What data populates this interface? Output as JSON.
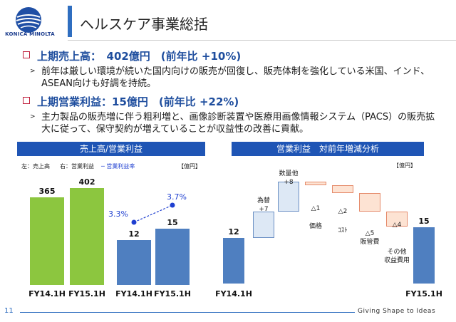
{
  "header": {
    "brand": "KONICA MINOLTA",
    "title": "ヘルスケア事業総括"
  },
  "sections": [
    {
      "heading": "上期売上高：　402億円　(前年比 +10%)",
      "body": "前年は厳しい環境が続いた国内向けの販売が回復し、販売体制を強化している米国、インド、ASEAN向けも好調を持続。"
    },
    {
      "heading": "上期営業利益：15億円　(前年比 +22%)",
      "body": "主力製品の販売増に伴う粗利増と、画像診断装置や医療用画像情報システム（PACS）の販売拡大に従って、保守契約が増えていることが収益性の改善に貢献。"
    }
  ],
  "left_chart": {
    "header": "売上高/営業利益",
    "legend_left": "左：売上高",
    "legend_right": "右：営業利益",
    "legend_line": "─ 営業利益率",
    "unit": "【億円】"
  },
  "right_chart": {
    "header": "営業利益　対前年増減分析",
    "unit": "【億円】"
  },
  "footer": {
    "page_number": "11",
    "tagline": "Giving Shape to Ideas"
  },
  "colors": {
    "accent_blue": "#1f55b5",
    "green_bar": "#8cc63f",
    "blue_bar": "#4f7fc0",
    "rate_line": "#1f3fd0"
  },
  "chart_data": [
    {
      "type": "bar",
      "categories": [
        "FY14.1H",
        "FY15.1H"
      ],
      "series": [
        {
          "values": [
            365,
            402
          ]
        }
      ],
      "ylim": [
        0,
        420
      ]
    },
    {
      "type": "bar",
      "categories": [
        "FY14.1H",
        "FY15.1H"
      ],
      "series": [
        {
          "values": [
            12,
            15
          ]
        },
        {
          "name": "営業利益率",
          "values": [
            3.3,
            3.7
          ],
          "labels": [
            "3.3%",
            "3.7%"
          ]
        }
      ],
      "ylim": [
        0,
        26
      ]
    },
    {
      "type": "bar",
      "subtype": "waterfall",
      "steps": [
        {
          "label": "FY14.1H",
          "value": 12,
          "display": "12",
          "kind": "total"
        },
        {
          "label": "為替",
          "value": 7,
          "display": "+7",
          "kind": "up"
        },
        {
          "label": "数量他",
          "value": 8,
          "display": "+8",
          "kind": "up"
        },
        {
          "label": "価格",
          "value": -1,
          "display": "△1",
          "kind": "down"
        },
        {
          "label": "ｺｽﾄ",
          "value": -2,
          "display": "△2",
          "kind": "down"
        },
        {
          "label": "販管費",
          "value": -5,
          "display": "△5",
          "kind": "down"
        },
        {
          "label": "その他 収益費用",
          "value": -4,
          "display": "△4",
          "kind": "down"
        },
        {
          "label": "FY15.1H",
          "value": 15,
          "display": "15",
          "kind": "total"
        }
      ],
      "ylim": [
        0,
        30
      ]
    }
  ]
}
